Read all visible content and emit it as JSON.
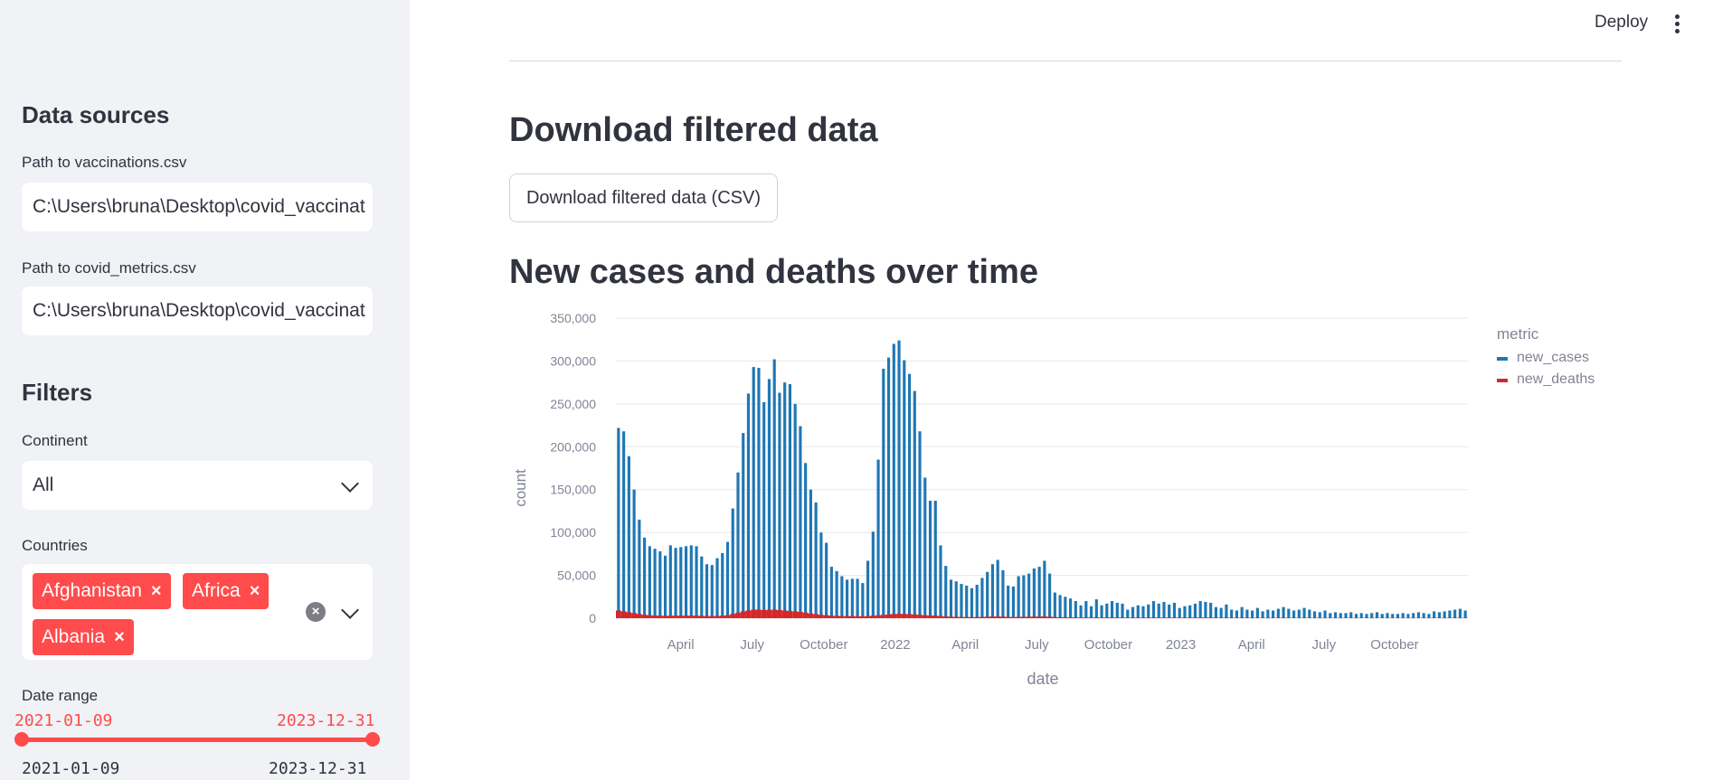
{
  "sidebar": {
    "data_sources_heading": "Data sources",
    "vacc_label": "Path to vaccinations.csv",
    "vacc_value": "C:\\Users\\bruna\\Desktop\\covid_vaccinat",
    "metrics_label": "Path to covid_metrics.csv",
    "metrics_value": "C:\\Users\\bruna\\Desktop\\covid_vaccinat",
    "filters_heading": "Filters",
    "continent_label": "Continent",
    "continent_value": "All",
    "countries_label": "Countries",
    "countries": [
      "Afghanistan",
      "Africa",
      "Albania"
    ],
    "date_range_label": "Date range",
    "date_start": "2021-01-09",
    "date_end": "2023-12-31",
    "range_min": "2021-01-09",
    "range_max": "2023-12-31",
    "accent_color": "#ff4b4b"
  },
  "header": {
    "deploy_label": "Deploy",
    "menu_icon": "kebab-menu-icon"
  },
  "main": {
    "download_heading": "Download filtered data",
    "download_button": "Download filtered data (CSV)",
    "chart_heading": "New cases and deaths over time"
  },
  "chart_data": {
    "type": "bar",
    "xlabel": "date",
    "ylabel": "count",
    "ylim": [
      0,
      350000
    ],
    "y_ticks": [
      "0",
      "50,000",
      "100,000",
      "150,000",
      "200,000",
      "250,000",
      "300,000",
      "350,000"
    ],
    "x_tick_labels": [
      "April",
      "July",
      "October",
      "2022",
      "April",
      "July",
      "October",
      "2023",
      "April",
      "July",
      "October"
    ],
    "legend_title": "metric",
    "legend_position": "top-right",
    "grid": true,
    "series": [
      {
        "name": "new_cases",
        "color": "#1f77b4",
        "values": [
          222000,
          218000,
          189000,
          150000,
          115000,
          94000,
          84000,
          81000,
          78000,
          73000,
          85000,
          82000,
          83000,
          84000,
          85000,
          84000,
          72000,
          63000,
          62000,
          70000,
          76000,
          89000,
          128000,
          170000,
          216000,
          262000,
          293000,
          292000,
          252000,
          279000,
          302000,
          263000,
          275000,
          273000,
          250000,
          224000,
          181000,
          150000,
          135000,
          100000,
          88000,
          60000,
          55000,
          49000,
          45000,
          46000,
          46000,
          41000,
          67000,
          101000,
          185000,
          291000,
          304000,
          320000,
          324000,
          301000,
          285000,
          265000,
          218000,
          164000,
          137000,
          137000,
          85000,
          61000,
          45000,
          43000,
          40000,
          38000,
          35000,
          39000,
          47000,
          54000,
          63000,
          68000,
          56000,
          38000,
          37000,
          49000,
          50000,
          52000,
          58000,
          60000,
          67000,
          52000,
          30000,
          27000,
          25000,
          23000,
          20000,
          15000,
          20000,
          14000,
          22000,
          15000,
          17000,
          20000,
          18000,
          17000,
          10000,
          13000,
          15000,
          14000,
          16000,
          20000,
          17000,
          19000,
          16000,
          18000,
          12000,
          14000,
          15000,
          17000,
          20000,
          19000,
          18000,
          13000,
          12000,
          16000,
          10000,
          9000,
          13000,
          10000,
          9000,
          12000,
          8000,
          10000,
          9000,
          11000,
          13000,
          11000,
          9000,
          10000,
          12000,
          10000,
          8000,
          7000,
          9000,
          6000,
          7000,
          6000,
          6000,
          7000,
          5000,
          6000,
          5000,
          6000,
          7000,
          5000,
          6000,
          5000,
          5000,
          6000,
          5000,
          6000,
          7000,
          6000,
          5000,
          8000,
          7000,
          8000,
          9000,
          10000,
          11000,
          9000
        ],
        "value_note": "approximate weekly values estimated from bar heights"
      },
      {
        "name": "new_deaths",
        "color": "#d62728",
        "values": [
          9000,
          8000,
          7000,
          6000,
          5000,
          4000,
          3500,
          3200,
          3000,
          2800,
          3000,
          3000,
          3000,
          3000,
          3000,
          3000,
          2800,
          2600,
          2500,
          2700,
          3000,
          3500,
          5000,
          6500,
          8000,
          9000,
          10000,
          10000,
          9500,
          9800,
          10000,
          9500,
          9000,
          8500,
          8000,
          7500,
          6500,
          5500,
          4800,
          4000,
          3500,
          3000,
          2800,
          2600,
          2500,
          2500,
          2400,
          2300,
          2600,
          3000,
          3500,
          4000,
          4500,
          5000,
          5200,
          5000,
          4800,
          4500,
          4000,
          3500,
          3200,
          3000,
          2600,
          2200,
          1800,
          1600,
          1500,
          1400,
          1300,
          1400,
          1600,
          1800,
          2000,
          2100,
          1900,
          1500,
          1400,
          1600,
          1700,
          1800,
          1900,
          2000,
          2100,
          1800,
          1300,
          1200,
          1100,
          1000,
          900,
          800,
          900,
          750,
          950,
          800,
          850,
          900,
          850,
          800,
          600,
          700,
          750,
          700,
          750,
          850,
          750,
          800,
          700,
          750,
          600,
          650,
          700,
          750,
          800,
          750,
          700,
          600,
          550,
          650,
          500,
          450,
          550,
          500,
          450,
          500,
          400,
          450,
          420,
          460,
          520,
          460,
          400,
          420,
          480,
          420,
          380,
          350,
          400,
          320,
          340,
          320,
          320,
          340,
          300,
          320,
          300,
          320,
          340,
          300,
          320,
          300,
          300,
          320,
          300,
          320,
          340,
          320,
          300,
          360,
          340,
          360,
          380,
          400,
          420,
          380
        ]
      }
    ]
  }
}
